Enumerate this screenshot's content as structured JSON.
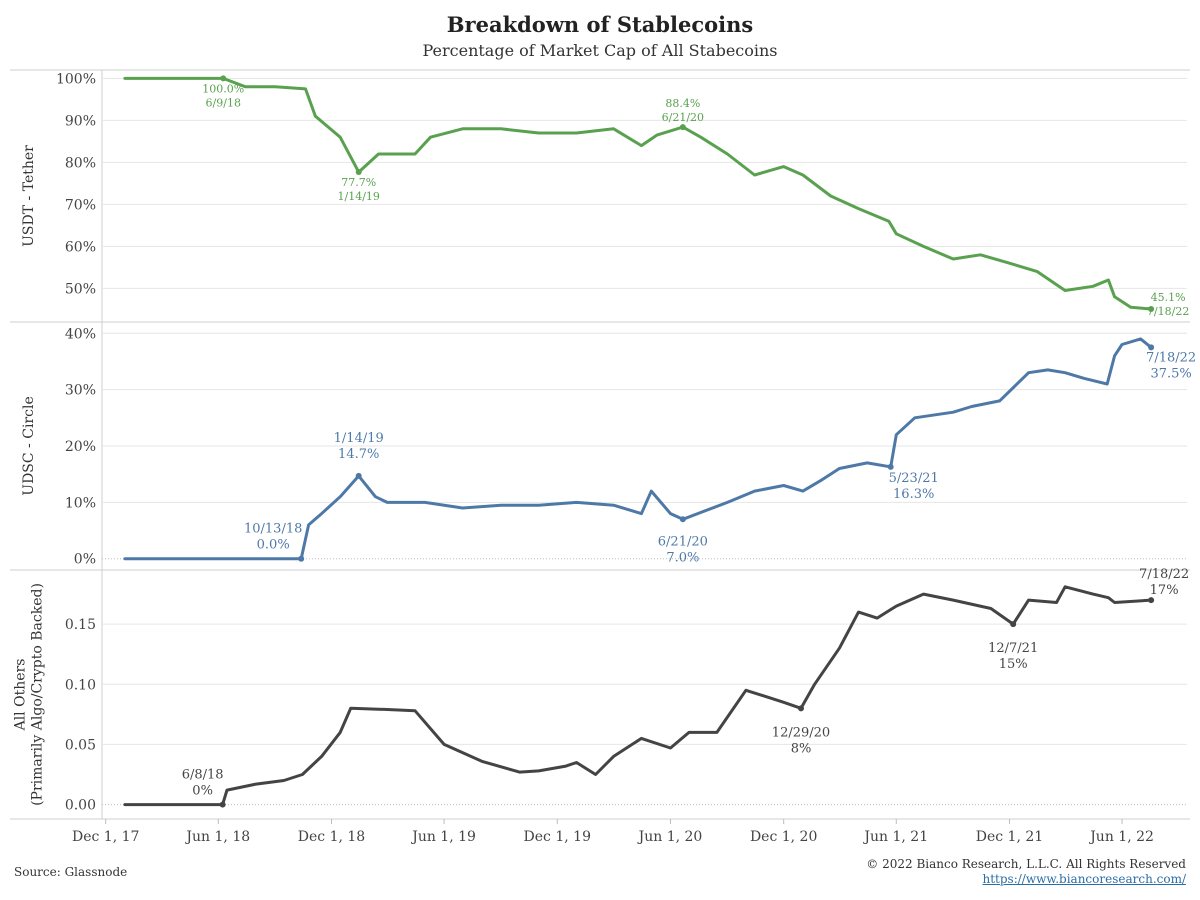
{
  "title": "Breakdown of Stablecoins",
  "subtitle": "Percentage of Market Cap of All Stabecoins",
  "source": "Source: Glassnode",
  "copyright": "© 2022 Bianco Research, L.L.C. All Rights Reserved",
  "url": "https://www.biancoresearch.com/",
  "colors": {
    "usdt": "#59a14f",
    "usdc": "#4e79a7",
    "others": "#444444",
    "grid": "#e6e6e6"
  },
  "chart_data": [
    {
      "type": "line",
      "panel": "usdt",
      "ylabel": "USDT - Tether",
      "ylim": [
        42,
        102
      ],
      "yticks": [
        50,
        60,
        70,
        80,
        90,
        100
      ],
      "ytick_labels": [
        "50%",
        "60%",
        "70%",
        "80%",
        "90%",
        "100%"
      ],
      "series": [
        {
          "x": [
            "2018-01-01",
            "2018-06-09",
            "2018-07-15",
            "2018-09-01",
            "2018-10-20",
            "2018-11-05",
            "2018-12-15",
            "2019-01-14",
            "2019-02-15",
            "2019-04-15",
            "2019-05-10",
            "2019-07-01",
            "2019-09-01",
            "2019-11-01",
            "2020-01-01",
            "2020-03-01",
            "2020-04-15",
            "2020-05-10",
            "2020-06-21",
            "2020-07-20",
            "2020-09-01",
            "2020-10-15",
            "2020-12-01",
            "2021-01-01",
            "2021-02-15",
            "2021-04-01",
            "2021-05-20",
            "2021-06-01",
            "2021-07-15",
            "2021-09-01",
            "2021-10-15",
            "2021-12-01",
            "2022-01-15",
            "2022-03-01",
            "2022-04-15",
            "2022-05-10",
            "2022-05-20",
            "2022-06-15",
            "2022-07-18"
          ],
          "y": [
            100,
            100,
            98,
            98,
            97.5,
            91,
            86,
            77.7,
            82,
            82,
            86,
            88,
            88,
            87,
            87,
            88,
            84,
            86.5,
            88.4,
            86,
            82,
            77,
            79,
            77,
            72,
            69,
            66,
            63,
            60,
            57,
            58,
            56,
            54,
            49.5,
            50.5,
            52,
            48,
            45.5,
            45.1
          ]
        }
      ],
      "annotations": [
        {
          "x": "2018-06-09",
          "y": 100.0,
          "text": [
            "100.0%",
            "6/9/18"
          ]
        },
        {
          "x": "2019-01-14",
          "y": 77.7,
          "text": [
            "77.7%",
            "1/14/19"
          ]
        },
        {
          "x": "2020-06-21",
          "y": 88.4,
          "text": [
            "88.4%",
            "6/21/20"
          ]
        },
        {
          "x": "2022-07-18",
          "y": 45.1,
          "text": [
            "45.1%",
            "7/18/22"
          ]
        }
      ]
    },
    {
      "type": "line",
      "panel": "usdc",
      "ylabel": "UDSC - Circle",
      "ylim": [
        -2,
        42
      ],
      "yticks": [
        0,
        10,
        20,
        30,
        40
      ],
      "ytick_labels": [
        "0%",
        "10%",
        "20%",
        "30%",
        "40%"
      ],
      "series": [
        {
          "x": [
            "2018-01-01",
            "2018-10-13",
            "2018-10-25",
            "2018-11-15",
            "2018-12-15",
            "2019-01-14",
            "2019-02-10",
            "2019-03-01",
            "2019-05-01",
            "2019-07-01",
            "2019-09-01",
            "2019-11-01",
            "2020-01-01",
            "2020-03-01",
            "2020-04-15",
            "2020-05-01",
            "2020-06-01",
            "2020-06-21",
            "2020-07-15",
            "2020-09-01",
            "2020-10-15",
            "2020-12-01",
            "2021-01-01",
            "2021-02-01",
            "2021-03-01",
            "2021-04-15",
            "2021-05-23",
            "2021-06-01",
            "2021-07-01",
            "2021-09-01",
            "2021-10-01",
            "2021-11-15",
            "2022-01-01",
            "2022-02-01",
            "2022-03-01",
            "2022-04-01",
            "2022-05-08",
            "2022-05-20",
            "2022-06-01",
            "2022-07-01",
            "2022-07-18"
          ],
          "y": [
            0,
            0,
            6,
            8,
            11,
            14.7,
            11,
            10,
            10,
            9,
            9.5,
            9.5,
            10,
            9.5,
            8,
            12,
            8,
            7.0,
            8,
            10,
            12,
            13,
            12,
            14,
            16,
            17,
            16.3,
            22,
            25,
            26,
            27,
            28,
            33,
            33.5,
            33,
            32,
            31,
            36,
            38,
            39,
            37.5
          ]
        }
      ],
      "annotations": [
        {
          "x": "2018-10-13",
          "y": 0.0,
          "text": [
            "10/13/18",
            "0.0%"
          ]
        },
        {
          "x": "2019-01-14",
          "y": 14.7,
          "text": [
            "1/14/19",
            "14.7%"
          ]
        },
        {
          "x": "2020-06-21",
          "y": 7.0,
          "text": [
            "6/21/20",
            "7.0%"
          ]
        },
        {
          "x": "2021-05-23",
          "y": 16.3,
          "text": [
            "5/23/21",
            "16.3%"
          ]
        },
        {
          "x": "2022-07-18",
          "y": 37.5,
          "text": [
            "7/18/22",
            "37.5%"
          ]
        }
      ]
    },
    {
      "type": "line",
      "panel": "others",
      "ylabel": [
        "All Others",
        "(Primarily Algo/Crypto Backed)"
      ],
      "ylim": [
        -0.012,
        0.195
      ],
      "yticks": [
        0,
        0.05,
        0.1,
        0.15
      ],
      "ytick_labels": [
        "0.00",
        "0.05",
        "0.10",
        "0.15"
      ],
      "series": [
        {
          "x": [
            "2018-01-01",
            "2018-06-08",
            "2018-06-15",
            "2018-08-01",
            "2018-09-15",
            "2018-10-15",
            "2018-11-15",
            "2018-12-15",
            "2019-01-01",
            "2019-03-01",
            "2019-04-15",
            "2019-06-01",
            "2019-08-01",
            "2019-10-01",
            "2019-11-01",
            "2019-12-15",
            "2020-01-01",
            "2020-02-01",
            "2020-03-01",
            "2020-04-15",
            "2020-06-01",
            "2020-07-01",
            "2020-08-15",
            "2020-10-01",
            "2020-11-01",
            "2020-12-01",
            "2020-12-29",
            "2021-01-20",
            "2021-03-01",
            "2021-04-01",
            "2021-05-01",
            "2021-06-01",
            "2021-07-15",
            "2021-09-01",
            "2021-11-01",
            "2021-12-07",
            "2022-01-01",
            "2022-02-15",
            "2022-03-01",
            "2022-04-15",
            "2022-05-10",
            "2022-05-20",
            "2022-07-18"
          ],
          "y": [
            0,
            0,
            0.012,
            0.017,
            0.02,
            0.025,
            0.04,
            0.06,
            0.08,
            0.079,
            0.078,
            0.05,
            0.036,
            0.027,
            0.028,
            0.032,
            0.035,
            0.025,
            0.04,
            0.055,
            0.047,
            0.06,
            0.06,
            0.095,
            0.09,
            0.085,
            0.08,
            0.1,
            0.13,
            0.16,
            0.155,
            0.165,
            0.175,
            0.17,
            0.163,
            0.15,
            0.17,
            0.168,
            0.181,
            0.175,
            0.172,
            0.168,
            0.17
          ]
        }
      ],
      "annotations": [
        {
          "x": "2018-06-08",
          "y": 0,
          "text": [
            "6/8/18",
            "0%"
          ]
        },
        {
          "x": "2020-12-29",
          "y": 0.08,
          "text": [
            "12/29/20",
            "8%"
          ]
        },
        {
          "x": "2021-12-07",
          "y": 0.15,
          "text": [
            "12/7/21",
            "15%"
          ]
        },
        {
          "x": "2022-07-18",
          "y": 0.17,
          "text": [
            "7/18/22",
            "17%"
          ]
        }
      ]
    }
  ],
  "xaxis": {
    "ticks": [
      "2017-12-01",
      "2018-06-01",
      "2018-12-01",
      "2019-06-01",
      "2019-12-01",
      "2020-06-01",
      "2020-12-01",
      "2021-06-01",
      "2021-12-01",
      "2022-06-01"
    ],
    "labels": [
      "Dec 1, 17",
      "Jun 1, 18",
      "Dec 1, 18",
      "Jun 1, 19",
      "Dec 1, 19",
      "Jun 1, 20",
      "Dec 1, 20",
      "Jun 1, 21",
      "Dec 1, 21",
      "Jun 1, 22"
    ]
  }
}
